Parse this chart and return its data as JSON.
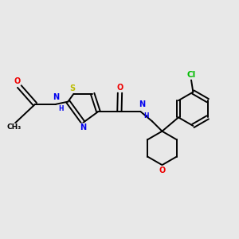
{
  "background_color": "#e8e8e8",
  "figsize": [
    3.0,
    3.0
  ],
  "dpi": 100,
  "bond_color": "#000000",
  "bond_width": 1.4,
  "atom_colors": {
    "C": "#000000",
    "N": "#0000ee",
    "O": "#ee0000",
    "S": "#bbbb00",
    "Cl": "#00bb00",
    "H": "#0000ee"
  },
  "font_size": 7.0,
  "thcx": 3.45,
  "thcy": 5.55,
  "thiazole_r": 0.68,
  "benz_r": 0.72,
  "thp_r": 0.72
}
